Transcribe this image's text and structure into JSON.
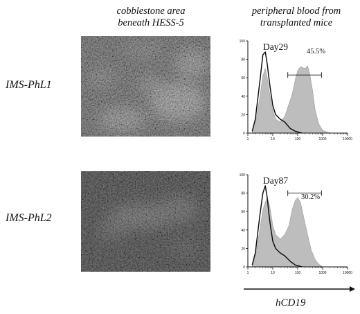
{
  "header": {
    "left_line1": "cobblestone area",
    "left_line2": "beneath HESS-5",
    "right_line1": "peripheral blood from",
    "right_line2": "transplanted mice"
  },
  "rows": [
    {
      "label": "IMS-PhL1",
      "day": "Day29",
      "percent": "45.5%"
    },
    {
      "label": "IMS-PhL2",
      "day": "Day87",
      "percent": "30.2%"
    }
  ],
  "axis": {
    "x_label": "hCD19",
    "x_ticks": [
      "1",
      "10",
      "100",
      "1000",
      "10000"
    ],
    "y_ticks": [
      "0",
      "20",
      "40",
      "60",
      "80",
      "100"
    ]
  },
  "colors": {
    "fill": "#bdbdbd",
    "micro_dark": "#2f2f2f",
    "micro_light": "#8a8a8a"
  },
  "chart_data": [
    {
      "type": "area",
      "x_scale": "log",
      "xlim": [
        1,
        10000
      ],
      "ylim": [
        0,
        100
      ],
      "xlabel": "hCD19",
      "series": [
        {
          "kind": "filled",
          "x": [
            1.5,
            2,
            3,
            4,
            5,
            6,
            7,
            8,
            10,
            13,
            20,
            30,
            40,
            60,
            80,
            100,
            130,
            200,
            250,
            300,
            400,
            500,
            700,
            1000,
            2000
          ],
          "y": [
            2,
            10,
            38,
            62,
            70,
            60,
            48,
            38,
            25,
            15,
            12,
            18,
            28,
            42,
            58,
            68,
            72,
            70,
            73,
            65,
            45,
            25,
            10,
            3,
            0
          ]
        },
        {
          "kind": "line",
          "x": [
            1.5,
            2,
            3,
            4,
            5,
            6,
            7,
            8,
            10,
            13,
            20,
            30,
            50,
            80,
            150
          ],
          "y": [
            2,
            15,
            55,
            85,
            88,
            75,
            60,
            48,
            30,
            20,
            15,
            12,
            5,
            2,
            0
          ]
        }
      ],
      "gate": {
        "x": [
          40,
          900
        ],
        "y": 63
      }
    },
    {
      "type": "area",
      "x_scale": "log",
      "xlim": [
        1,
        10000
      ],
      "ylim": [
        0,
        100
      ],
      "xlabel": "hCD19",
      "series": [
        {
          "kind": "filled",
          "x": [
            1.5,
            2,
            3,
            4,
            5,
            6,
            7,
            8,
            10,
            13,
            20,
            30,
            45,
            60,
            80,
            100,
            130,
            180,
            250,
            350,
            500,
            700,
            1000
          ],
          "y": [
            2,
            10,
            40,
            62,
            70,
            75,
            70,
            62,
            45,
            35,
            30,
            35,
            45,
            62,
            72,
            75,
            70,
            52,
            35,
            18,
            8,
            3,
            0
          ]
        },
        {
          "kind": "line",
          "x": [
            1.5,
            2,
            3,
            4,
            5,
            6,
            7,
            8,
            10,
            13,
            20,
            30,
            50,
            80,
            150
          ],
          "y": [
            2,
            15,
            55,
            80,
            88,
            75,
            58,
            45,
            28,
            20,
            15,
            12,
            6,
            2,
            0
          ]
        }
      ],
      "gate": {
        "x": [
          40,
          900
        ],
        "y": 80
      }
    }
  ]
}
